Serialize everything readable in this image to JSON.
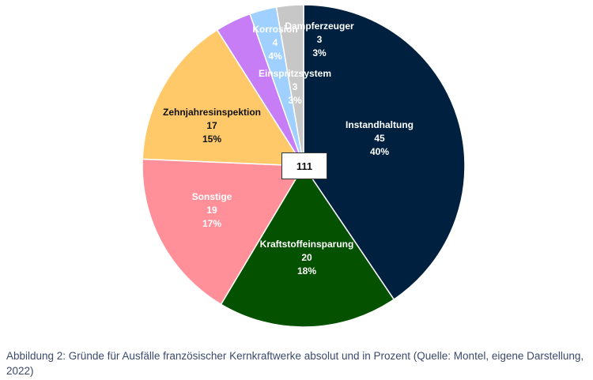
{
  "chart_data": {
    "type": "pie",
    "total": "111",
    "slices": [
      {
        "label": "Instandhaltung",
        "value": 45,
        "percent": "40%",
        "color": "#00203f",
        "text_color": "#ffffff"
      },
      {
        "label": "Kraftstoffeinsparung",
        "value": 20,
        "percent": "18%",
        "color": "#045100",
        "text_color": "#ffffff"
      },
      {
        "label": "Sonstige",
        "value": 19,
        "percent": "17%",
        "color": "#ff909a",
        "text_color": "#ffffff"
      },
      {
        "label": "Zehnjahresinspektion",
        "value": 17,
        "percent": "15%",
        "color": "#ffc96a",
        "text_color": "#111111"
      },
      {
        "label": "Korrosion",
        "value": 4,
        "percent": "4%",
        "color": "#c77df5",
        "text_color": "#ffffff"
      },
      {
        "label": "Einspritzsystem",
        "value": 3,
        "percent": "3%",
        "color": "#9fd0ff",
        "text_color": "#ffffff"
      },
      {
        "label": "Dampferzeuger",
        "value": 3,
        "percent": "3%",
        "color": "#c7c7c7",
        "text_color": "#ffffff"
      }
    ]
  },
  "caption": "Abbildung 2: Gründe für Ausfälle französischer Kernkraftwerke absolut und in Prozent (Quelle: Montel, eigene Darstellung, 2022)"
}
